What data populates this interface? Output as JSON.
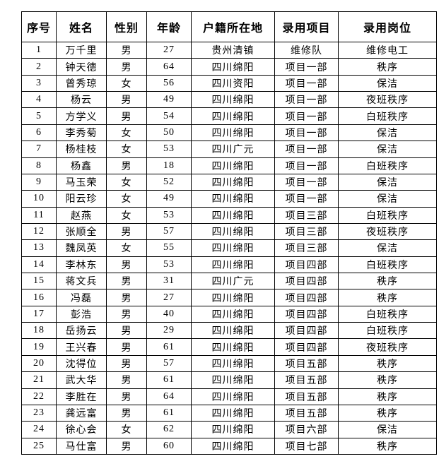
{
  "document": {
    "background_color": "#ffffff",
    "border_color": "#000000",
    "text_color": "#000000"
  },
  "table": {
    "headers": [
      "序号",
      "姓名",
      "性别",
      "年龄",
      "户籍所在地",
      "录用项目",
      "录用岗位"
    ],
    "rows": [
      {
        "index": "1",
        "name": "万千里",
        "gender": "男",
        "age": "27",
        "hometown": "贵州清镇",
        "project": "维修队",
        "position": "维修电工"
      },
      {
        "index": "2",
        "name": "钟天德",
        "gender": "男",
        "age": "64",
        "hometown": "四川绵阳",
        "project": "项目一部",
        "position": "秩序"
      },
      {
        "index": "3",
        "name": "曾秀琼",
        "gender": "女",
        "age": "56",
        "hometown": "四川资阳",
        "project": "项目一部",
        "position": "保洁"
      },
      {
        "index": "4",
        "name": "杨云",
        "gender": "男",
        "age": "49",
        "hometown": "四川绵阳",
        "project": "项目一部",
        "position": "夜班秩序"
      },
      {
        "index": "5",
        "name": "方学义",
        "gender": "男",
        "age": "54",
        "hometown": "四川绵阳",
        "project": "项目一部",
        "position": "白班秩序"
      },
      {
        "index": "6",
        "name": "李秀菊",
        "gender": "女",
        "age": "50",
        "hometown": "四川绵阳",
        "project": "项目一部",
        "position": "保洁"
      },
      {
        "index": "7",
        "name": "杨桂枝",
        "gender": "女",
        "age": "53",
        "hometown": "四川广元",
        "project": "项目一部",
        "position": "保洁"
      },
      {
        "index": "8",
        "name": "杨鑫",
        "gender": "男",
        "age": "18",
        "hometown": "四川绵阳",
        "project": "项目一部",
        "position": "白班秩序"
      },
      {
        "index": "9",
        "name": "马玉荣",
        "gender": "女",
        "age": "52",
        "hometown": "四川绵阳",
        "project": "项目一部",
        "position": "保洁"
      },
      {
        "index": "10",
        "name": "阳云珍",
        "gender": "女",
        "age": "49",
        "hometown": "四川绵阳",
        "project": "项目一部",
        "position": "保洁"
      },
      {
        "index": "11",
        "name": "赵燕",
        "gender": "女",
        "age": "53",
        "hometown": "四川绵阳",
        "project": "项目三部",
        "position": "白班秩序"
      },
      {
        "index": "12",
        "name": "张顺全",
        "gender": "男",
        "age": "57",
        "hometown": "四川绵阳",
        "project": "项目三部",
        "position": "夜班秩序"
      },
      {
        "index": "13",
        "name": "魏凤英",
        "gender": "女",
        "age": "55",
        "hometown": "四川绵阳",
        "project": "项目三部",
        "position": "保洁"
      },
      {
        "index": "14",
        "name": "李林东",
        "gender": "男",
        "age": "53",
        "hometown": "四川绵阳",
        "project": "项目四部",
        "position": "白班秩序"
      },
      {
        "index": "15",
        "name": "蒋文兵",
        "gender": "男",
        "age": "31",
        "hometown": "四川广元",
        "project": "项目四部",
        "position": "秩序"
      },
      {
        "index": "16",
        "name": "冯磊",
        "gender": "男",
        "age": "27",
        "hometown": "四川绵阳",
        "project": "项目四部",
        "position": "秩序"
      },
      {
        "index": "17",
        "name": "彭浩",
        "gender": "男",
        "age": "40",
        "hometown": "四川绵阳",
        "project": "项目四部",
        "position": "白班秩序"
      },
      {
        "index": "18",
        "name": "岳扬云",
        "gender": "男",
        "age": "29",
        "hometown": "四川绵阳",
        "project": "项目四部",
        "position": "白班秩序"
      },
      {
        "index": "19",
        "name": "王兴春",
        "gender": "男",
        "age": "61",
        "hometown": "四川绵阳",
        "project": "项目四部",
        "position": "夜班秩序"
      },
      {
        "index": "20",
        "name": "沈得位",
        "gender": "男",
        "age": "57",
        "hometown": "四川绵阳",
        "project": "项目五部",
        "position": "秩序"
      },
      {
        "index": "21",
        "name": "武大华",
        "gender": "男",
        "age": "61",
        "hometown": "四川绵阳",
        "project": "项目五部",
        "position": "秩序"
      },
      {
        "index": "22",
        "name": "李胜在",
        "gender": "男",
        "age": "64",
        "hometown": "四川绵阳",
        "project": "项目五部",
        "position": "秩序"
      },
      {
        "index": "23",
        "name": "龚远富",
        "gender": "男",
        "age": "61",
        "hometown": "四川绵阳",
        "project": "项目五部",
        "position": "秩序"
      },
      {
        "index": "24",
        "name": "徐心会",
        "gender": "女",
        "age": "62",
        "hometown": "四川绵阳",
        "project": "项目六部",
        "position": "保洁"
      },
      {
        "index": "25",
        "name": "马仕富",
        "gender": "男",
        "age": "60",
        "hometown": "四川绵阳",
        "project": "项目七部",
        "position": "秩序"
      }
    ]
  }
}
